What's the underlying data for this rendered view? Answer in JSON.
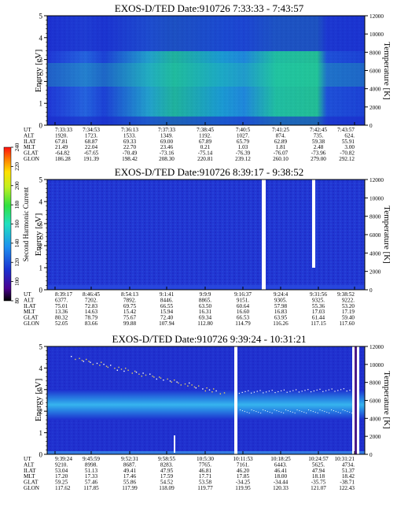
{
  "colorbar": {
    "label": "Second Harmonic Current",
    "ticks": [
      "80",
      "100",
      "120",
      "140",
      "160",
      "180",
      "200",
      "220",
      "240"
    ]
  },
  "row_labels": [
    "UT",
    "ALT",
    "ILAT",
    "MLT",
    "GLAT",
    "GLON"
  ],
  "chart_data": [
    {
      "type": "heatmap",
      "title": "EXOS-D/TED   Date:910726  7:33:33 - 7:43:57",
      "ylabel": "Energy [eV]",
      "y2label": "Temperature [K]",
      "ylim": [
        0,
        5
      ],
      "y_ticks": [
        "0",
        "1",
        "2",
        "3",
        "4",
        "5"
      ],
      "y2lim": [
        0,
        12000
      ],
      "y2_ticks": [
        "0",
        "2000",
        "4000",
        "6000",
        "8000",
        "10000",
        "12000"
      ],
      "ephemeris": {
        "UT": [
          "7:33:33",
          "7:34:53",
          "7:36:13",
          "7:37:33",
          "7:38:45",
          "7:40:5",
          "7:41:25",
          "7:42:45",
          "7:43:57"
        ],
        "ALT": [
          "1920.",
          "1723.",
          "1533.",
          "1349.",
          "1192.",
          "1027.",
          "874.",
          "735.",
          "624."
        ],
        "ILAT": [
          "67.81",
          "68.87",
          "69.33",
          "69.00",
          "67.89",
          "65.79",
          "62.89",
          "59.38",
          "55.91"
        ],
        "MLT": [
          "21.49",
          "22.04",
          "22.70",
          "23.46",
          "0.21",
          "1.03",
          "1.81",
          "2.48",
          "3.00"
        ],
        "GLAT": [
          "-64.82",
          "-67.65",
          "-70.49",
          "-73.16",
          "-75.14",
          "-76.39",
          "-76.07",
          "-73.96",
          "-70.82"
        ],
        "GLON": [
          "186.28",
          "191.39",
          "198.42",
          "208.30",
          "220.81",
          "239.12",
          "260.10",
          "279.00",
          "292.12"
        ]
      }
    },
    {
      "type": "heatmap",
      "title": "EXOS-D/TED   Date:910726  8:39:17 - 9:38:52",
      "ylabel": "Energy [eV]",
      "y2label": "Temperature [K]",
      "ylim": [
        0,
        5
      ],
      "y_ticks": [
        "0",
        "1",
        "2",
        "3",
        "4",
        "5"
      ],
      "y2lim": [
        0,
        12000
      ],
      "y2_ticks": [
        "0",
        "2000",
        "4000",
        "6000",
        "8000",
        "10000",
        "12000"
      ],
      "ephemeris": {
        "UT": [
          "8:39:17",
          "8:46:45",
          "8:54:13",
          "9:1:41",
          "9:9:9",
          "9:16:37",
          "9:24:4",
          "9:31:56",
          "9:38:52"
        ],
        "ALT": [
          "6377.",
          "7202.",
          "7892.",
          "8446.",
          "8865.",
          "9151.",
          "9305.",
          "9325.",
          "9222."
        ],
        "ILAT": [
          "75.01",
          "72.83",
          "69.75",
          "66.55",
          "63.50",
          "60.64",
          "57.98",
          "55.36",
          "53.20"
        ],
        "MLT": [
          "13.36",
          "14.63",
          "15.42",
          "15.94",
          "16.31",
          "16.60",
          "16.83",
          "17.03",
          "17.19"
        ],
        "GLAT": [
          "80.32",
          "78.79",
          "75.67",
          "72.40",
          "69.34",
          "66.53",
          "63.95",
          "61.44",
          "59.40"
        ],
        "GLON": [
          "52.05",
          "83.66",
          "99.88",
          "107.94",
          "112.80",
          "114.79",
          "116.26",
          "117.15",
          "117.60"
        ]
      }
    },
    {
      "type": "heatmap",
      "title": "EXOS-D/TED   Date:910726  9:39:24 - 10:31:21",
      "ylabel": "Energy [eV]",
      "y2label": "Temperature [K]",
      "ylim": [
        0,
        5
      ],
      "y_ticks": [
        "0",
        "1",
        "2",
        "3",
        "4",
        "5"
      ],
      "y2lim": [
        0,
        12000
      ],
      "y2_ticks": [
        "0",
        "2000",
        "4000",
        "6000",
        "8000",
        "10000",
        "12000"
      ],
      "ephemeris": {
        "UT": [
          "9:39:24",
          "9:45:59",
          "9:52:31",
          "9:58:55",
          "10:5:30",
          "10:11:53",
          "10:18:25",
          "10:24:57",
          "10:31:21"
        ],
        "ALT": [
          "9210.",
          "8998.",
          "8687.",
          "8283.",
          "7765.",
          "7161.",
          "6443.",
          "5625.",
          "4734."
        ],
        "ILAT": [
          "53.04",
          "51.13",
          "49.41",
          "47.95",
          "46.81",
          "46.20",
          "46.41",
          "47.94",
          "51.37"
        ],
        "MLT": [
          "17.20",
          "17.33",
          "17.46",
          "17.59",
          "17.71",
          "17.85",
          "18.00",
          "18.18",
          "18.42"
        ],
        "GLAT": [
          "59.25",
          "57.46",
          "55.86",
          "54.52",
          "53.58",
          "-34.25",
          "-34.44",
          "-35.75",
          "-38.71"
        ],
        "GLON": [
          "117.62",
          "117.85",
          "117.99",
          "118.09",
          "119.77",
          "119.95",
          "120.33",
          "121.07",
          "122.43"
        ]
      }
    }
  ]
}
